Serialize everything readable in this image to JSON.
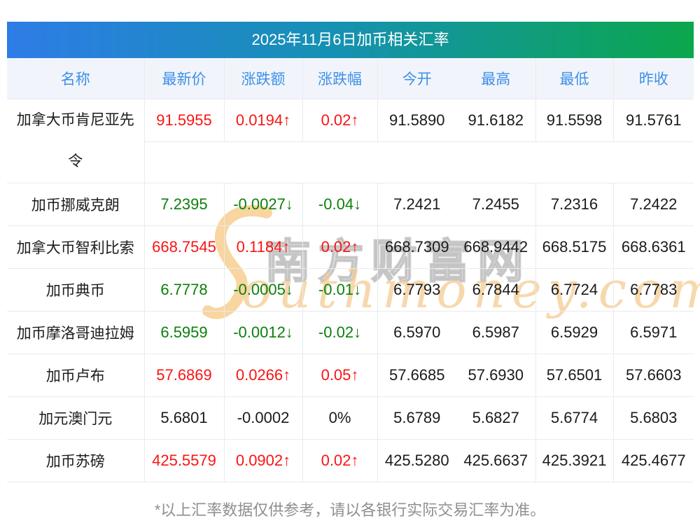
{
  "title": "2025年11月6日加币相关汇率",
  "footnote": "*以上汇率数据仅供参考，请以各银行实际交易汇率为准。",
  "watermark": {
    "cn": "南方财富网",
    "en": "outhmoney.com"
  },
  "colors": {
    "band_start": "#2e7ce6",
    "band_mid": "#1591b2",
    "band_end": "#0ba74c",
    "up": "#fa1414",
    "down": "#0b800b",
    "header_bg": "#f1f5fb",
    "header_text": "#3e8fe8"
  },
  "chart_data": {
    "type": "table",
    "title": "2025年11月6日加币相关汇率",
    "columns": [
      "名称",
      "最新价",
      "涨跌额",
      "涨跌幅",
      "今开",
      "最高",
      "最低",
      "昨收"
    ],
    "rows": [
      {
        "name": "加拿大币肯尼亚先令",
        "tall": true,
        "wrap_after": 8,
        "latest": "91.5955",
        "change": "0.0194↑",
        "change_pct": "0.02↑",
        "trend": "up",
        "open": "91.5890",
        "high": "91.6182",
        "low": "91.5598",
        "prev_close": "91.5761"
      },
      {
        "name": "加币挪威克朗",
        "latest": "7.2395",
        "change": "-0.0027↓",
        "change_pct": "-0.04↓",
        "trend": "down",
        "open": "7.2421",
        "high": "7.2455",
        "low": "7.2316",
        "prev_close": "7.2422"
      },
      {
        "name": "加拿大币智利比索",
        "latest": "668.7545",
        "change": "0.1184↑",
        "change_pct": "0.02↑",
        "trend": "up",
        "open": "668.7309",
        "high": "668.9442",
        "low": "668.5175",
        "prev_close": "668.6361"
      },
      {
        "name": "加币典币",
        "latest": "6.7778",
        "change": "-0.0005↓",
        "change_pct": "-0.01↓",
        "trend": "down",
        "open": "6.7793",
        "high": "6.7844",
        "low": "6.7724",
        "prev_close": "6.7783"
      },
      {
        "name": "加币摩洛哥迪拉姆",
        "latest": "6.5959",
        "change": "-0.0012↓",
        "change_pct": "-0.02↓",
        "trend": "down",
        "open": "6.5970",
        "high": "6.5987",
        "low": "6.5929",
        "prev_close": "6.5971"
      },
      {
        "name": "加币卢布",
        "latest": "57.6869",
        "change": "0.0266↑",
        "change_pct": "0.05↑",
        "trend": "up",
        "open": "57.6685",
        "high": "57.6930",
        "low": "57.6501",
        "prev_close": "57.6603"
      },
      {
        "name": "加元澳门元",
        "latest": "5.6801",
        "change": "-0.0002",
        "change_pct": "0%",
        "trend": "flat",
        "open": "5.6789",
        "high": "5.6827",
        "low": "5.6774",
        "prev_close": "5.6803"
      },
      {
        "name": "加币苏磅",
        "latest": "425.5579",
        "change": "0.0902↑",
        "change_pct": "0.02↑",
        "trend": "up",
        "open": "425.5280",
        "high": "425.6637",
        "low": "425.3921",
        "prev_close": "425.4677"
      }
    ]
  }
}
